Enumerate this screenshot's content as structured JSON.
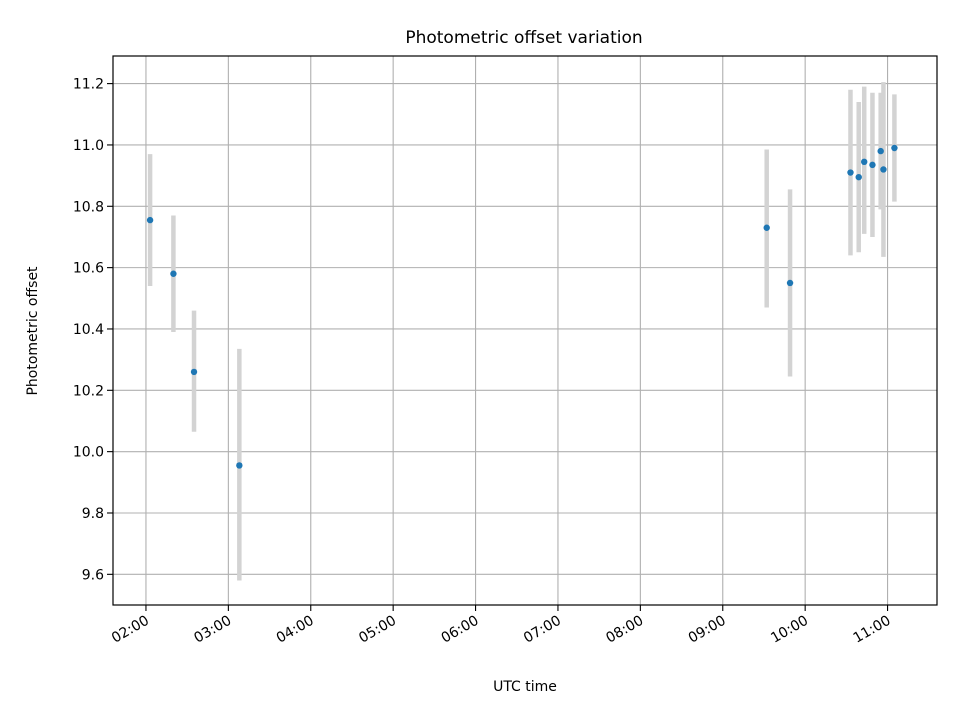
{
  "chart_data": {
    "type": "scatter",
    "title": "Photometric offset variation",
    "xlabel": "UTC time",
    "ylabel": "Photometric offset",
    "xlim": [
      "01:36",
      "11:36"
    ],
    "ylim": [
      9.5,
      11.29
    ],
    "grid": true,
    "x_ticks": [
      "02:00",
      "03:00",
      "04:00",
      "05:00",
      "06:00",
      "07:00",
      "08:00",
      "09:00",
      "10:00",
      "11:00"
    ],
    "y_ticks": [
      9.6,
      9.8,
      10.0,
      10.2,
      10.4,
      10.6,
      10.8,
      11.0,
      11.2
    ],
    "colors": {
      "points": "#1f77b4",
      "errorbars": "#d3d3d3",
      "grid": "#b0b0b0"
    },
    "points": [
      {
        "x": "02:03",
        "y": 10.755,
        "ylow": 10.54,
        "yhigh": 10.97
      },
      {
        "x": "02:20",
        "y": 10.58,
        "ylow": 10.39,
        "yhigh": 10.77
      },
      {
        "x": "02:35",
        "y": 10.26,
        "ylow": 10.065,
        "yhigh": 10.46
      },
      {
        "x": "03:08",
        "y": 9.955,
        "ylow": 9.58,
        "yhigh": 10.335
      },
      {
        "x": "09:32",
        "y": 10.73,
        "ylow": 10.47,
        "yhigh": 10.985
      },
      {
        "x": "09:49",
        "y": 10.55,
        "ylow": 10.245,
        "yhigh": 10.855
      },
      {
        "x": "10:33",
        "y": 10.91,
        "ylow": 10.64,
        "yhigh": 11.18
      },
      {
        "x": "10:39",
        "y": 10.895,
        "ylow": 10.65,
        "yhigh": 11.14
      },
      {
        "x": "10:43",
        "y": 10.945,
        "ylow": 10.71,
        "yhigh": 11.19
      },
      {
        "x": "10:49",
        "y": 10.935,
        "ylow": 10.7,
        "yhigh": 11.17
      },
      {
        "x": "10:55",
        "y": 10.98,
        "ylow": 10.79,
        "yhigh": 11.17
      },
      {
        "x": "10:57",
        "y": 10.92,
        "ylow": 10.635,
        "yhigh": 11.205
      },
      {
        "x": "11:05",
        "y": 10.99,
        "ylow": 10.815,
        "yhigh": 11.165
      }
    ]
  }
}
